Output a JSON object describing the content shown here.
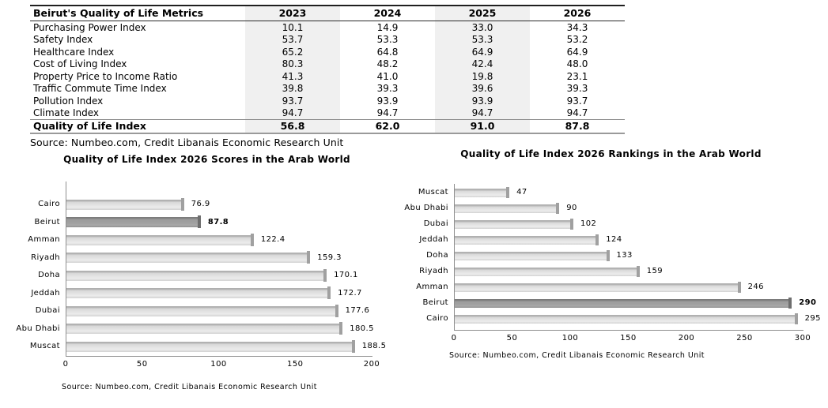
{
  "colors": {
    "table_column_shade": "#f0f0f0",
    "axis_line": "#8e8e8e",
    "bar_fill": "#dedede",
    "bar_cap": "#a0a0a0",
    "highlight_fill": "#9c9c9c",
    "highlight_cap": "#6e6e6e",
    "text": "#000000"
  },
  "table": {
    "title": "Beirut's Quality of Life Metrics",
    "columns": [
      "2023",
      "2024",
      "2025",
      "2026"
    ],
    "rows": [
      {
        "label": "Purchasing Power Index",
        "values": [
          "10.1",
          "14.9",
          "33.0",
          "34.3"
        ]
      },
      {
        "label": "Safety Index",
        "values": [
          "53.7",
          "53.3",
          "53.3",
          "53.2"
        ]
      },
      {
        "label": "Healthcare Index",
        "values": [
          "65.2",
          "64.8",
          "64.9",
          "64.9"
        ]
      },
      {
        "label": "Cost of Living Index",
        "values": [
          "80.3",
          "48.2",
          "42.4",
          "48.0"
        ]
      },
      {
        "label": "Property Price to Income Ratio",
        "values": [
          "41.3",
          "41.0",
          "19.8",
          "23.1"
        ]
      },
      {
        "label": "Traffic Commute Time Index",
        "values": [
          "39.8",
          "39.3",
          "39.6",
          "39.3"
        ]
      },
      {
        "label": "Pollution Index",
        "values": [
          "93.7",
          "93.9",
          "93.9",
          "93.7"
        ]
      },
      {
        "label": "Climate Index",
        "values": [
          "94.7",
          "94.7",
          "94.7",
          "94.7"
        ]
      }
    ],
    "total_row": {
      "label": "Quality of Life Index",
      "values": [
        "56.8",
        "62.0",
        "91.0",
        "87.8"
      ]
    },
    "source": "Source: Numbeo.com, Credit Libanais Economic Research Unit"
  },
  "chart_data": [
    {
      "type": "bar",
      "orientation": "horizontal",
      "title": "Quality of Life Index 2026 Scores in the Arab World",
      "categories": [
        "Cairo",
        "Beirut",
        "Amman",
        "Riyadh",
        "Doha",
        "Jeddah",
        "Dubai",
        "Abu Dhabi",
        "Muscat"
      ],
      "values": [
        76.9,
        87.8,
        122.4,
        159.3,
        170.1,
        172.7,
        177.6,
        180.5,
        188.5
      ],
      "value_labels": [
        "76.9",
        "87.8",
        "122.4",
        "159.3",
        "170.1",
        "172.7",
        "177.6",
        "180.5",
        "188.5"
      ],
      "highlight_category": "Beirut",
      "xlim": [
        0,
        200
      ],
      "xticks": [
        0,
        50,
        100,
        150,
        200
      ],
      "grid": false,
      "legend": "none",
      "source": "Source: Numbeo.com, Credit Libanais Economic Research Unit"
    },
    {
      "type": "bar",
      "orientation": "horizontal",
      "title": "Quality of Life Index 2026 Rankings in the Arab World",
      "categories": [
        "Muscat",
        "Abu Dhabi",
        "Dubai",
        "Jeddah",
        "Doha",
        "Riyadh",
        "Amman",
        "Beirut",
        "Cairo"
      ],
      "values": [
        47,
        90,
        102,
        124,
        133,
        159,
        246,
        290,
        295
      ],
      "value_labels": [
        "47",
        "90",
        "102",
        "124",
        "133",
        "159",
        "246",
        "290",
        "295"
      ],
      "highlight_category": "Beirut",
      "xlim": [
        0,
        300
      ],
      "xticks": [
        0,
        50,
        100,
        150,
        200,
        250,
        300
      ],
      "grid": false,
      "legend": "none",
      "source": "Source: Numbeo.com, Credit Libanais Economic Research Unit"
    }
  ]
}
